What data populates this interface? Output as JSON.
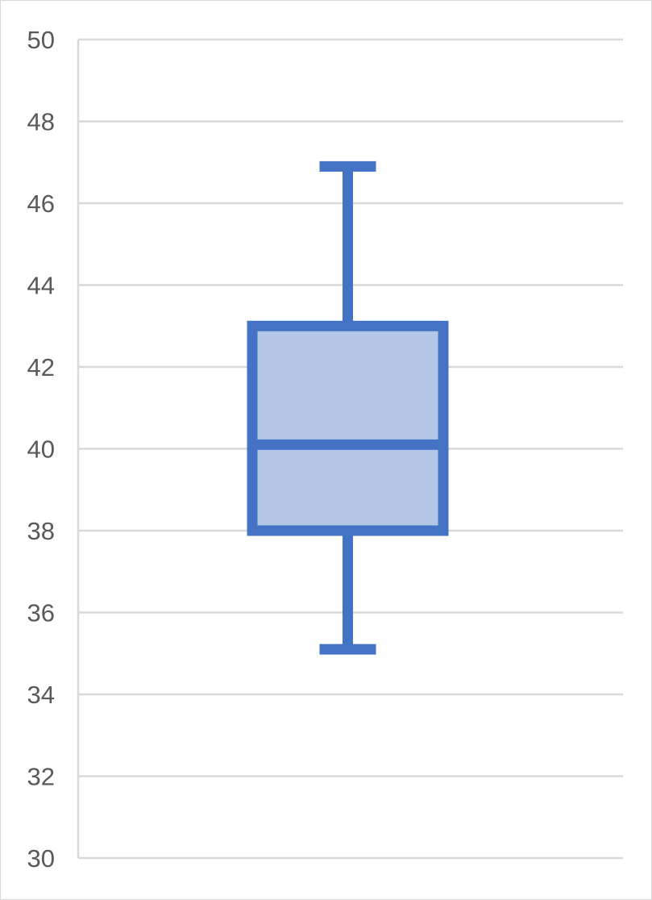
{
  "chart_data": {
    "type": "box",
    "title": "",
    "xlabel": "",
    "ylabel": "",
    "ylim": [
      30,
      50
    ],
    "yticks": [
      50,
      48,
      46,
      44,
      42,
      40,
      38,
      36,
      34,
      32,
      30
    ],
    "ytick_labels": [
      "50",
      "48",
      "46",
      "44",
      "42",
      "40",
      "38",
      "36",
      "34",
      "32",
      "30"
    ],
    "grid": true,
    "legend": "none",
    "series": [
      {
        "min": 35.1,
        "q1": 38.0,
        "median": 40.1,
        "q3": 43.0,
        "max": 46.9
      }
    ],
    "colors": {
      "box_stroke": "#4472C4",
      "box_fill": "#B4C7E7",
      "gridline": "#D9D9D9",
      "tick_text": "#595959"
    }
  }
}
